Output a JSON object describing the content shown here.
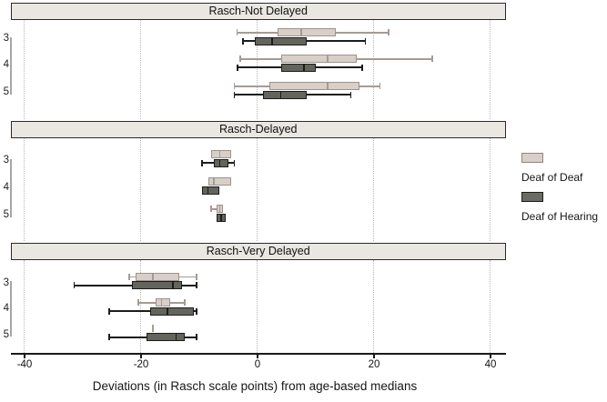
{
  "chart_data": {
    "type": "boxplot",
    "orientation": "horizontal",
    "xlabel": "Deviations (in Rasch scale points) from age-based medians",
    "xlim": [
      -40,
      40
    ],
    "xticks": [
      -40,
      -20,
      0,
      20,
      40
    ],
    "grid": "vertical-dotted",
    "categories": [
      "3",
      "4",
      "5"
    ],
    "legend": [
      "Deaf of Deaf",
      "Deaf of Hearing"
    ],
    "colors": {
      "deaf_of_deaf_fill": "#d9cfc9",
      "deaf_of_deaf_line": "#a59b95",
      "deaf_of_hearing_fill": "#63655d",
      "deaf_of_hearing_line": "#1c1c1c",
      "header_fill": "#eae6e2"
    },
    "panels": [
      {
        "title": "Rasch-Not Delayed",
        "rows": [
          {
            "category": "3",
            "boxes": [
              {
                "lo": -3.5,
                "q1": 3.5,
                "med": 7.5,
                "q3": 13.5,
                "hi": 22.5
              },
              {
                "lo": -2.5,
                "q1": -0.5,
                "med": 2.5,
                "q3": 8.5,
                "hi": 18.5
              }
            ]
          },
          {
            "category": "4",
            "boxes": [
              {
                "lo": -3,
                "q1": 4,
                "med": 12,
                "q3": 17,
                "hi": 30
              },
              {
                "lo": -3.5,
                "q1": 4,
                "med": 8,
                "q3": 10,
                "hi": 18
              }
            ]
          },
          {
            "category": "5",
            "boxes": [
              {
                "lo": -4,
                "q1": 2,
                "med": 12,
                "q3": 17.5,
                "hi": 21
              },
              {
                "lo": -4,
                "q1": 1,
                "med": 4,
                "q3": 8.5,
                "hi": 16
              }
            ]
          }
        ]
      },
      {
        "title": "Rasch-Delayed",
        "rows": [
          {
            "category": "3",
            "boxes": [
              {
                "lo": -8,
                "q1": -8,
                "med": -6.5,
                "q3": -4.5,
                "hi": -4.5
              },
              {
                "lo": -9.5,
                "q1": -7.5,
                "med": -6.5,
                "q3": -5,
                "hi": -4
              }
            ]
          },
          {
            "category": "4",
            "boxes": [
              {
                "lo": -8.5,
                "q1": -8.5,
                "med": -7.5,
                "q3": -4.5,
                "hi": -4.5
              },
              {
                "lo": -9.5,
                "q1": -9.5,
                "med": -8.5,
                "q3": -6.5,
                "hi": -6.5
              }
            ]
          },
          {
            "category": "5",
            "boxes": [
              {
                "lo": -8,
                "q1": -7,
                "med": -6.5,
                "q3": -6,
                "hi": -6
              },
              {
                "lo": -7,
                "q1": -7,
                "med": -6.3,
                "q3": -5.5,
                "hi": -5.5
              }
            ]
          }
        ]
      },
      {
        "title": "Rasch-Very Delayed",
        "rows": [
          {
            "category": "3",
            "boxes": [
              {
                "lo": -22,
                "q1": -21,
                "med": -18,
                "q3": -13.5,
                "hi": -10.5
              },
              {
                "lo": -31.5,
                "q1": -21.5,
                "med": -14.5,
                "q3": -13,
                "hi": -10.5
              }
            ]
          },
          {
            "category": "4",
            "boxes": [
              {
                "lo": -20.5,
                "q1": -17.5,
                "med": -16.5,
                "q3": -15,
                "hi": -12.5
              },
              {
                "lo": -25.5,
                "q1": -18.5,
                "med": -15.5,
                "q3": -11,
                "hi": -10.5
              }
            ]
          },
          {
            "category": "5",
            "boxes": [
              {
                "lo": -18,
                "q1": -18,
                "med": -18,
                "q3": -18,
                "hi": -18
              },
              {
                "lo": -25.5,
                "q1": -19,
                "med": -14,
                "q3": -12.5,
                "hi": -10.5
              }
            ]
          }
        ]
      }
    ]
  }
}
